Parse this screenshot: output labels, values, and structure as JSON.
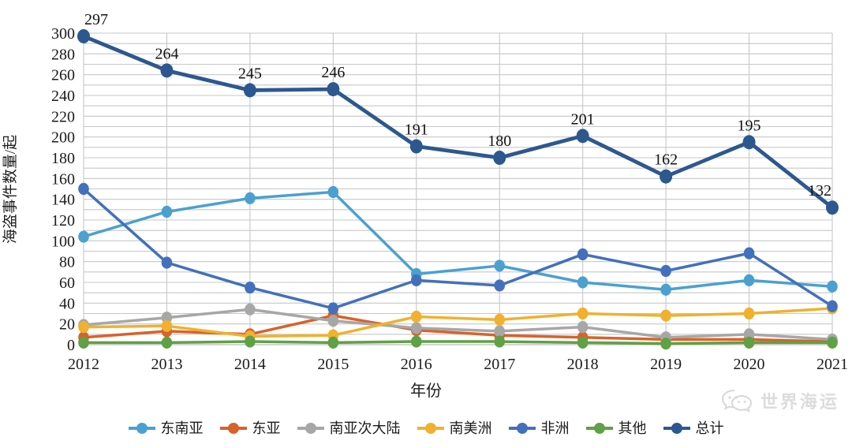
{
  "watermark": {
    "icon": "wechat-logo-icon",
    "text": "世界海运"
  },
  "chart_data": {
    "type": "line",
    "title": "",
    "xlabel": "年份",
    "ylabel": "海盗事件数量/起",
    "categories": [
      "2012",
      "2013",
      "2014",
      "2015",
      "2016",
      "2017",
      "2018",
      "2019",
      "2020",
      "2021"
    ],
    "ylim": [
      0,
      300
    ],
    "ytick_step": 20,
    "grid_minor_step": 10,
    "grid": true,
    "gridline_color": "#c7c7c7",
    "axis_text_color": "#1c1c1c",
    "legend_position": "bottom",
    "series": [
      {
        "name": "东南亚",
        "color": "#4AA1D0",
        "values": [
          104,
          128,
          141,
          147,
          68,
          76,
          60,
          53,
          62,
          56
        ]
      },
      {
        "name": "东亚",
        "color": "#D8622A",
        "values": [
          7,
          13,
          10,
          28,
          14,
          9,
          7,
          5,
          5,
          3
        ]
      },
      {
        "name": "南亚次大陆",
        "color": "#A7A7A7",
        "values": [
          19,
          26,
          34,
          23,
          16,
          13,
          17,
          7,
          10,
          5
        ]
      },
      {
        "name": "南美洲",
        "color": "#F0B12E",
        "values": [
          17,
          18,
          8,
          9,
          27,
          24,
          30,
          28,
          30,
          35
        ]
      },
      {
        "name": "非洲",
        "color": "#4370BC",
        "values": [
          150,
          79,
          55,
          35,
          62,
          57,
          87,
          71,
          88,
          37
        ]
      },
      {
        "name": "其他",
        "color": "#5FA145",
        "values": [
          2,
          2,
          3,
          2,
          3,
          3,
          2,
          1,
          2,
          2
        ]
      },
      {
        "name": "总计",
        "color": "#2D588F",
        "values": [
          297,
          264,
          245,
          246,
          191,
          180,
          201,
          162,
          195,
          132
        ],
        "emphasis": true,
        "data_labels": true
      }
    ]
  }
}
